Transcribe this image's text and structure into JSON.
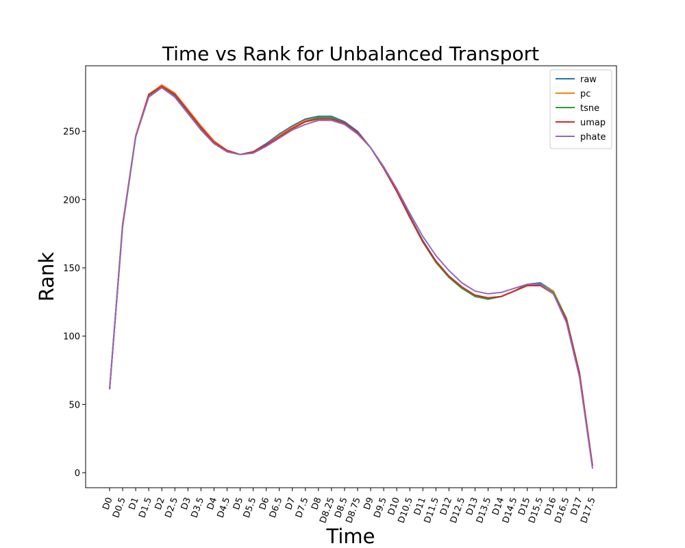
{
  "chart_data": {
    "type": "line",
    "title": "Time vs Rank for Unbalanced Transport",
    "xlabel": "Time",
    "ylabel": "Rank",
    "ylim": [
      -11,
      298
    ],
    "yticks": [
      0,
      50,
      100,
      150,
      200,
      250
    ],
    "grid": false,
    "legend_position": "top-right",
    "categories": [
      "D0",
      "D0.5",
      "D1",
      "D1.5",
      "D2",
      "D2.5",
      "D3",
      "D3.5",
      "D4",
      "D4.5",
      "D5",
      "D5.5",
      "D6",
      "D6.5",
      "D7",
      "D7.5",
      "D8",
      "D8.25",
      "D8.5",
      "D8.75",
      "D9",
      "D9.5",
      "D10",
      "D10.5",
      "D11",
      "D11.5",
      "D12",
      "D12.5",
      "D13",
      "D13.5",
      "D14",
      "D14.5",
      "D15",
      "D15.5",
      "D16",
      "D16.5",
      "D17",
      "D17.5"
    ],
    "series": [
      {
        "name": "raw",
        "color": "#1f77b4",
        "values": [
          61,
          182,
          246,
          276,
          283,
          276,
          264,
          251,
          241,
          235,
          233,
          235,
          241,
          248,
          254,
          259,
          261,
          261,
          257,
          250,
          238,
          224,
          207,
          188,
          170,
          155,
          143,
          135,
          130,
          128,
          129,
          133,
          138,
          139,
          133,
          113,
          73,
          5
        ]
      },
      {
        "name": "pc",
        "color": "#ff7f0e",
        "values": [
          61,
          182,
          247,
          277,
          284,
          278,
          266,
          254,
          243,
          236,
          233,
          235,
          240,
          247,
          253,
          258,
          260,
          260,
          256,
          249,
          238,
          223,
          206,
          187,
          169,
          154,
          143,
          135,
          130,
          128,
          129,
          133,
          137,
          138,
          133,
          113,
          73,
          5
        ]
      },
      {
        "name": "tsne",
        "color": "#2ca02c",
        "values": [
          61,
          181,
          246,
          276,
          283,
          277,
          265,
          252,
          242,
          236,
          233,
          235,
          240,
          246,
          252,
          257,
          260,
          260,
          256,
          249,
          238,
          223,
          206,
          187,
          169,
          154,
          143,
          135,
          129,
          127,
          129,
          133,
          137,
          138,
          132,
          113,
          73,
          5
        ]
      },
      {
        "name": "umap",
        "color": "#d62728",
        "values": [
          61,
          181,
          246,
          277,
          283,
          277,
          265,
          253,
          242,
          236,
          233,
          235,
          240,
          246,
          252,
          257,
          259,
          259,
          256,
          249,
          238,
          223,
          206,
          187,
          169,
          155,
          144,
          136,
          130,
          128,
          129,
          133,
          137,
          137,
          131,
          112,
          73,
          5
        ]
      },
      {
        "name": "phate",
        "color": "#9467bd",
        "values": [
          61,
          180,
          246,
          275,
          282,
          275,
          263,
          251,
          241,
          235,
          233,
          234,
          239,
          245,
          251,
          255,
          258,
          258,
          255,
          248,
          238,
          224,
          208,
          190,
          173,
          159,
          148,
          139,
          133,
          131,
          132,
          135,
          138,
          138,
          131,
          110,
          70,
          3
        ]
      }
    ]
  }
}
